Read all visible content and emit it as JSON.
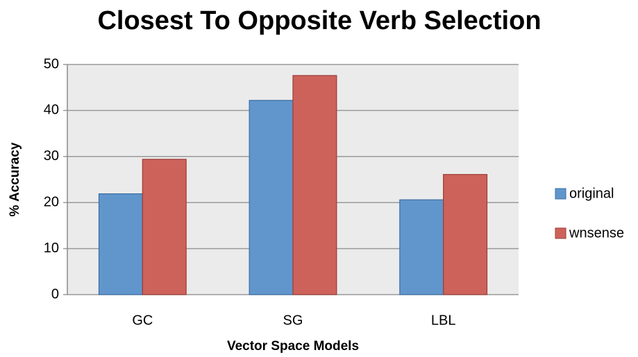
{
  "chart_data": {
    "type": "bar",
    "title": "Closest To Opposite Verb Selection",
    "xlabel": "Vector Space Models",
    "ylabel": "% Accuracy",
    "categories": [
      "GC",
      "SG",
      "LBL"
    ],
    "series": [
      {
        "name": "original",
        "color": "#6196cc",
        "values": [
          21.9,
          42.2,
          20.6
        ]
      },
      {
        "name": "wnsense",
        "color": "#cd625b",
        "values": [
          29.4,
          47.6,
          26.1
        ]
      }
    ],
    "ylim": [
      0,
      50
    ],
    "yticks": [
      0,
      10,
      20,
      30,
      40,
      50
    ],
    "grid": true,
    "legend": "right"
  }
}
